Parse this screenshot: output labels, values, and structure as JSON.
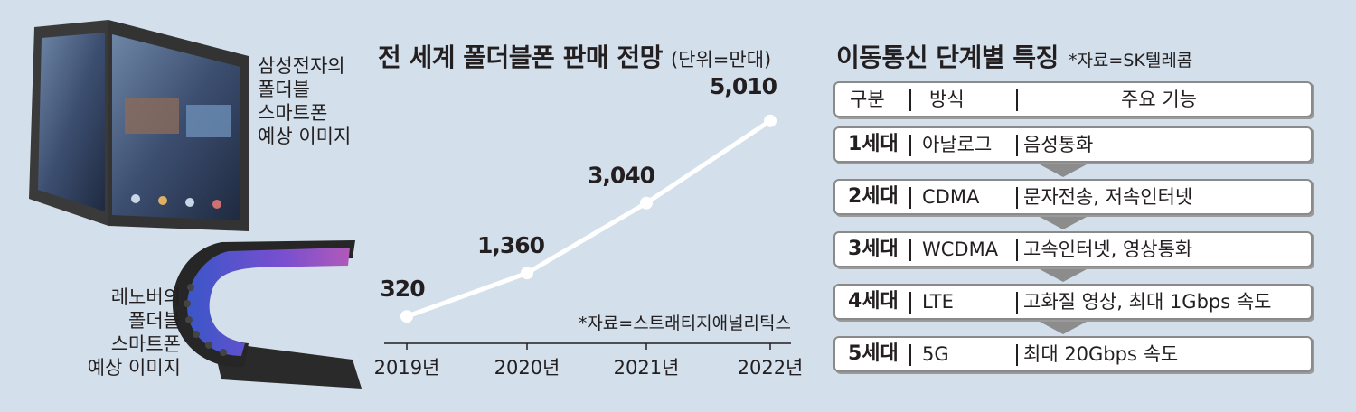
{
  "images": {
    "samsung_caption": [
      "삼성전자의",
      "폴더블",
      "스마트폰",
      "예상 이미지"
    ],
    "lenovo_caption": [
      "레노버의",
      "폴더블",
      "스마트폰",
      "예상 이미지"
    ]
  },
  "chart": {
    "title": "전 세계 폴더블폰 판매 전망",
    "unit": "(단위=만대)",
    "source": "*자료=스트래티지애널리틱스"
  },
  "chart_data": {
    "type": "line",
    "title": "전 세계 폴더블폰 판매 전망",
    "unit": "(단위=만대)",
    "categories": [
      "2019년",
      "2020년",
      "2021년",
      "2022년"
    ],
    "values": [
      320,
      1360,
      3040,
      5010
    ],
    "data_labels": [
      "320",
      "1,360",
      "3,040",
      "5,010"
    ],
    "ylim": [
      0,
      5200
    ],
    "grid": false,
    "line_color": "#ffffff",
    "marker_color": "#ffffff"
  },
  "table": {
    "title": "이동통신 단계별 특징",
    "source": "*자료=SK텔레콤",
    "header": {
      "generation": "구분",
      "method": "방식",
      "features": "주요 기능"
    },
    "rows": [
      {
        "generation": "1세대",
        "method": "아날로그",
        "features": "음성통화"
      },
      {
        "generation": "2세대",
        "method": "CDMA",
        "features": "문자전송, 저속인터넷"
      },
      {
        "generation": "3세대",
        "method": "WCDMA",
        "features": "고속인터넷, 영상통화"
      },
      {
        "generation": "4세대",
        "method": "LTE",
        "features": "고화질 영상, 최대 1Gbps 속도"
      },
      {
        "generation": "5세대",
        "method": "5G",
        "features": "최대 20Gbps 속도"
      }
    ]
  },
  "colors": {
    "background": "#d3dfeb",
    "row_border": "#8a8a8a",
    "arrow": "#8c8c8c"
  }
}
